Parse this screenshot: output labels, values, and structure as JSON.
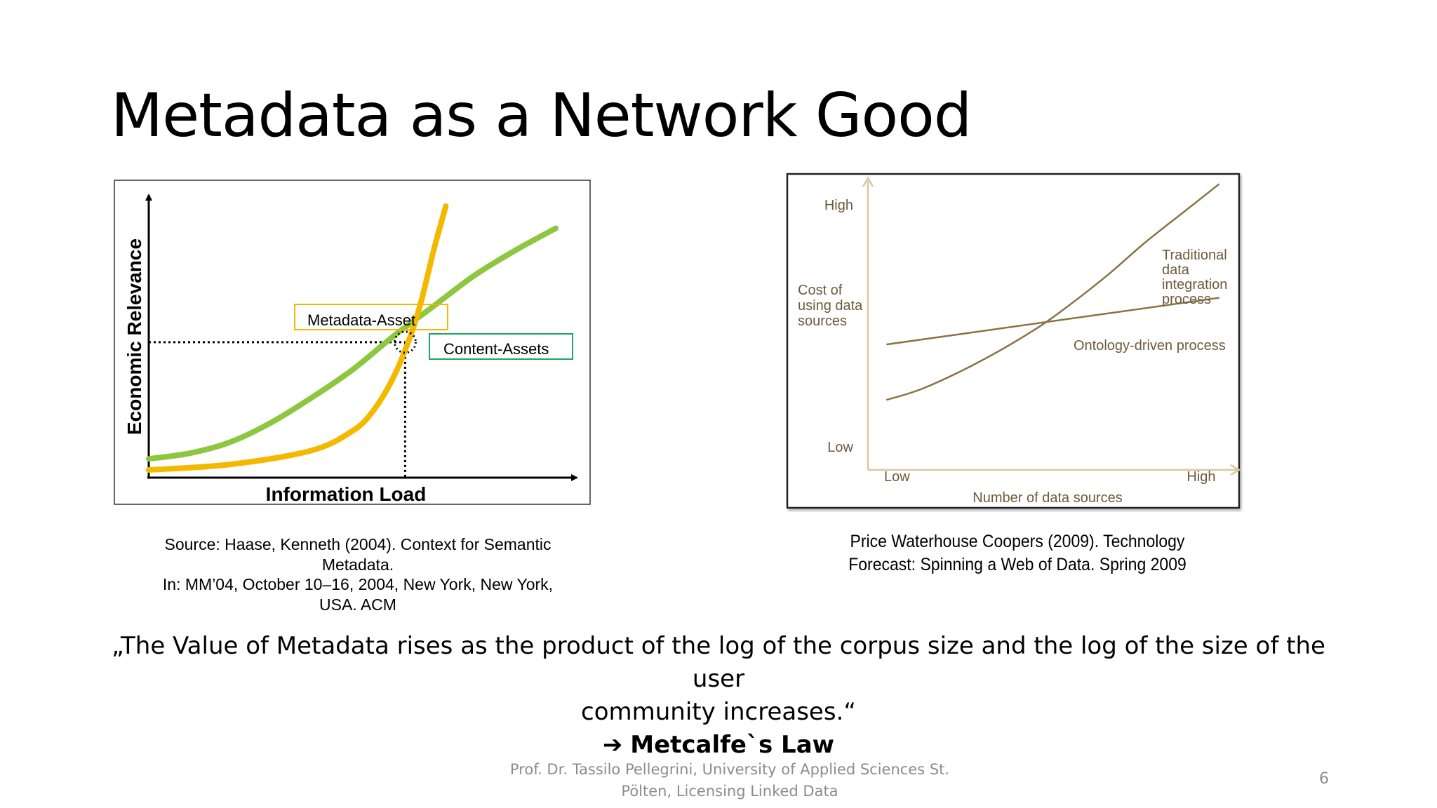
{
  "slide": {
    "title": "Metadata as a Network Good",
    "caption_left": [
      "Source: Haase, Kenneth (2004). Context for Semantic",
      "Metadata.",
      "In: MM’04, October 10–16, 2004, New York, New York,",
      "USA. ACM"
    ],
    "caption_right": [
      "Price Waterhouse Coopers (2009). Technology",
      "Forecast: Spinning a Web of Data. Spring 2009"
    ],
    "quote": [
      "„The Value of Metadata rises as the product of the log of the corpus size and the log of the size of the user",
      "community increases.“"
    ],
    "law_arrow": "➔",
    "law": "Metcalfe`s Law",
    "footer": [
      "Prof. Dr. Tassilo Pellegrini, University of Applied Sciences St.",
      "Pölten, Licensing Linked Data"
    ],
    "page_number": "6"
  },
  "chart_data": [
    {
      "type": "line",
      "title": "",
      "xlabel": "Information Load",
      "ylabel": "Economic Relevance",
      "xlim": [
        0,
        100
      ],
      "ylim": [
        0,
        100
      ],
      "grid": false,
      "colors": {
        "metadata": "#f5b800",
        "content": "#8dc63f"
      },
      "series": [
        {
          "name": "Metadata-Asset",
          "x": [
            0,
            20,
            40,
            50,
            55,
            60,
            64,
            67,
            70,
            73
          ],
          "y": [
            1,
            3,
            8,
            15,
            22,
            34,
            48,
            62,
            80,
            96
          ]
        },
        {
          "name": "Content-Assets",
          "x": [
            0,
            10,
            20,
            30,
            40,
            50,
            60,
            70,
            80,
            90,
            100
          ],
          "y": [
            5,
            7,
            11,
            18,
            27,
            37,
            49,
            60,
            71,
            80,
            88
          ]
        }
      ],
      "intersection": {
        "x": 63,
        "y": 47
      },
      "annotations": [
        "Metadata-Asset",
        "Content-Assets"
      ]
    },
    {
      "type": "line",
      "title": "",
      "xlabel": "Number of data sources",
      "ylabel": "Cost of using data sources",
      "x_ticks": [
        "Low",
        "High"
      ],
      "y_ticks": [
        "Low",
        "High"
      ],
      "xlim": [
        0,
        100
      ],
      "ylim": [
        0,
        100
      ],
      "grid": false,
      "colors": {
        "line": "#8b7245",
        "axis": "#dcc6a0"
      },
      "series": [
        {
          "name": "Traditional data integration process",
          "x": [
            5,
            15,
            30,
            45,
            55,
            65,
            75,
            85,
            95
          ],
          "y": [
            24,
            28,
            37,
            48,
            57,
            67,
            78,
            88,
            98
          ]
        },
        {
          "name": "Ontology-driven process",
          "x": [
            5,
            95
          ],
          "y": [
            43,
            59
          ]
        }
      ]
    }
  ]
}
